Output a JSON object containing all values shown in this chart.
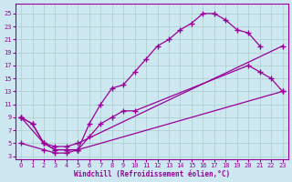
{
  "xlabel": "Windchill (Refroidissement éolien,°C)",
  "bg_color": "#cde8f0",
  "line_color": "#990099",
  "grid_color": "#aacccc",
  "xlim": [
    -0.5,
    23.5
  ],
  "ylim": [
    2.5,
    26.5
  ],
  "xticks": [
    0,
    1,
    2,
    3,
    4,
    5,
    6,
    7,
    8,
    9,
    10,
    11,
    12,
    13,
    14,
    15,
    16,
    17,
    18,
    19,
    20,
    21,
    22,
    23
  ],
  "yticks": [
    3,
    5,
    7,
    9,
    11,
    13,
    15,
    17,
    19,
    21,
    23,
    25
  ],
  "curves": [
    {
      "x": [
        0,
        1,
        2,
        3,
        4,
        5,
        6,
        7,
        8,
        9,
        10,
        11,
        12,
        13,
        14,
        15,
        16,
        17,
        18,
        19,
        20,
        21
      ],
      "y": [
        9,
        8,
        5,
        4,
        4,
        4,
        8,
        11,
        13.5,
        14,
        16,
        18,
        20,
        21,
        22.5,
        23.5,
        25,
        25,
        24,
        22.5,
        22,
        20
      ]
    },
    {
      "x": [
        0,
        1,
        2,
        3,
        4,
        5,
        6,
        7,
        8,
        9,
        10,
        20,
        21,
        22,
        23
      ],
      "y": [
        9,
        8,
        5,
        4,
        4,
        4,
        6,
        8,
        9,
        10,
        10,
        17,
        16,
        15,
        13
      ]
    },
    {
      "x": [
        0,
        2,
        3,
        4,
        5,
        23
      ],
      "y": [
        9,
        5,
        4.5,
        4.5,
        5,
        20
      ]
    },
    {
      "x": [
        0,
        2,
        3,
        4,
        5,
        23
      ],
      "y": [
        5,
        4,
        3.5,
        3.5,
        4,
        13
      ]
    }
  ]
}
